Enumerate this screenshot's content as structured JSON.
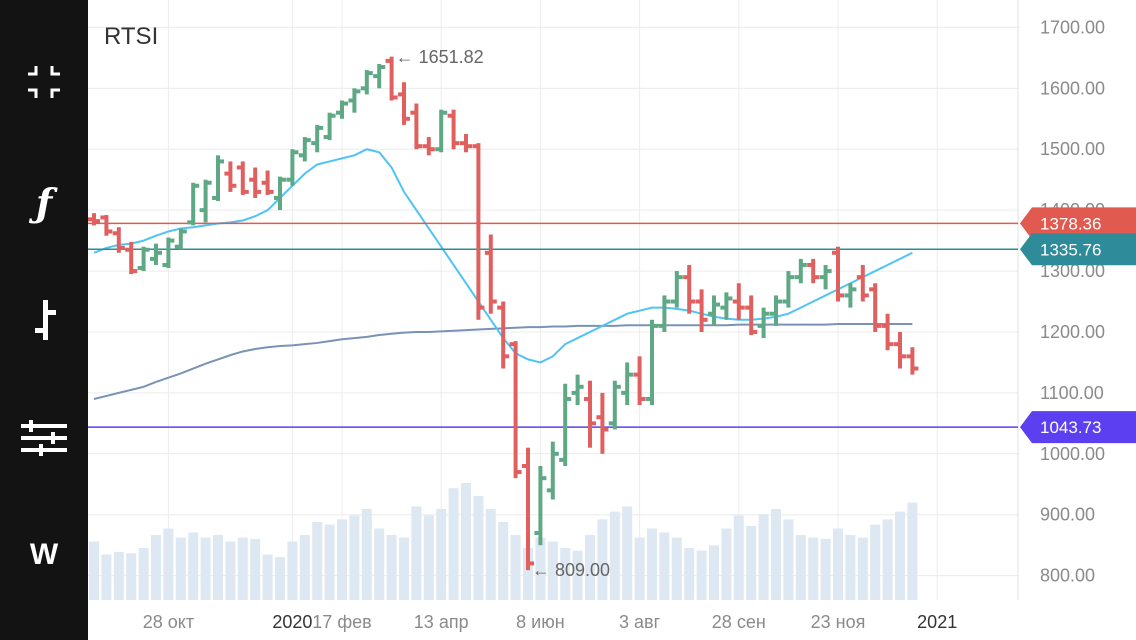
{
  "toolbar": {
    "buttons": [
      {
        "name": "fullscreen-exit-icon",
        "glyph": ""
      },
      {
        "name": "function-icon",
        "glyph": "ƒ"
      },
      {
        "name": "ohlc-bar-icon",
        "glyph": ""
      },
      {
        "name": "settings-sliders-icon",
        "glyph": ""
      },
      {
        "name": "weekly-timeframe-button",
        "glyph": "W"
      }
    ]
  },
  "chart_data": {
    "type": "ohlc",
    "title": "RTSI",
    "colors": {
      "up": "#5fa886",
      "down": "#e06060",
      "volume": "#dde8f2",
      "ma_short": "#4fc3f7",
      "ma_long": "#7a93b5"
    },
    "ylim": [
      760,
      1745
    ],
    "y_ticks": [
      "800.00",
      "900.00",
      "1000.00",
      "1100.00",
      "1200.00",
      "1300.00",
      "1400.00",
      "1500.00",
      "1600.00",
      "1700.00"
    ],
    "x_ticks": [
      {
        "label": "28 окт",
        "bold": false
      },
      {
        "label": "2020",
        "bold": true
      },
      {
        "label": "17 фев",
        "bold": false
      },
      {
        "label": "13 апр",
        "bold": false
      },
      {
        "label": "8 июн",
        "bold": false
      },
      {
        "label": "3 авг",
        "bold": false
      },
      {
        "label": "28 сен",
        "bold": false
      },
      {
        "label": "23 ноя",
        "bold": false
      },
      {
        "label": "2021",
        "bold": true
      }
    ],
    "x_tick_index": [
      6,
      16,
      20,
      28,
      36,
      44,
      52,
      60,
      68
    ],
    "bars_count": 67,
    "ohlc": [
      [
        1385,
        1395,
        1375,
        1382
      ],
      [
        1388,
        1392,
        1358,
        1365
      ],
      [
        1362,
        1372,
        1330,
        1338
      ],
      [
        1335,
        1348,
        1295,
        1300
      ],
      [
        1305,
        1340,
        1300,
        1335
      ],
      [
        1320,
        1345,
        1310,
        1330
      ],
      [
        1310,
        1355,
        1305,
        1350
      ],
      [
        1340,
        1370,
        1335,
        1365
      ],
      [
        1380,
        1445,
        1375,
        1440
      ],
      [
        1400,
        1450,
        1380,
        1445
      ],
      [
        1420,
        1490,
        1415,
        1480
      ],
      [
        1460,
        1480,
        1430,
        1440
      ],
      [
        1470,
        1480,
        1425,
        1430
      ],
      [
        1450,
        1470,
        1420,
        1430
      ],
      [
        1445,
        1465,
        1425,
        1430
      ],
      [
        1420,
        1455,
        1400,
        1450
      ],
      [
        1450,
        1500,
        1440,
        1495
      ],
      [
        1490,
        1520,
        1480,
        1515
      ],
      [
        1510,
        1540,
        1495,
        1535
      ],
      [
        1520,
        1560,
        1515,
        1555
      ],
      [
        1560,
        1580,
        1550,
        1575
      ],
      [
        1580,
        1600,
        1560,
        1595
      ],
      [
        1600,
        1630,
        1590,
        1625
      ],
      [
        1620,
        1640,
        1600,
        1635
      ],
      [
        1645,
        1652,
        1580,
        1585
      ],
      [
        1590,
        1610,
        1540,
        1550
      ],
      [
        1560,
        1575,
        1500,
        1505
      ],
      [
        1505,
        1520,
        1490,
        1500
      ],
      [
        1500,
        1565,
        1495,
        1560
      ],
      [
        1555,
        1565,
        1500,
        1510
      ],
      [
        1510,
        1525,
        1495,
        1505
      ],
      [
        1505,
        1510,
        1220,
        1240
      ],
      [
        1330,
        1360,
        1230,
        1250
      ],
      [
        1240,
        1250,
        1140,
        1160
      ],
      [
        1180,
        1185,
        960,
        970
      ],
      [
        980,
        1010,
        809,
        820
      ],
      [
        870,
        980,
        850,
        960
      ],
      [
        940,
        1020,
        925,
        1000
      ],
      [
        990,
        1115,
        980,
        1090
      ],
      [
        1100,
        1130,
        1080,
        1110
      ],
      [
        1090,
        1120,
        1010,
        1050
      ],
      [
        1060,
        1100,
        1000,
        1040
      ],
      [
        1050,
        1120,
        1040,
        1110
      ],
      [
        1100,
        1150,
        1080,
        1130
      ],
      [
        1130,
        1160,
        1080,
        1090
      ],
      [
        1090,
        1220,
        1080,
        1210
      ],
      [
        1210,
        1260,
        1200,
        1250
      ],
      [
        1250,
        1300,
        1240,
        1290
      ],
      [
        1290,
        1310,
        1230,
        1250
      ],
      [
        1250,
        1270,
        1200,
        1220
      ],
      [
        1230,
        1260,
        1210,
        1245
      ],
      [
        1240,
        1265,
        1220,
        1255
      ],
      [
        1250,
        1280,
        1220,
        1240
      ],
      [
        1240,
        1260,
        1195,
        1200
      ],
      [
        1210,
        1240,
        1190,
        1230
      ],
      [
        1230,
        1260,
        1210,
        1250
      ],
      [
        1250,
        1300,
        1240,
        1290
      ],
      [
        1290,
        1320,
        1280,
        1310
      ],
      [
        1310,
        1320,
        1280,
        1290
      ],
      [
        1290,
        1310,
        1270,
        1300
      ],
      [
        1330,
        1340,
        1250,
        1260
      ],
      [
        1260,
        1280,
        1240,
        1270
      ],
      [
        1290,
        1310,
        1250,
        1260
      ],
      [
        1270,
        1280,
        1200,
        1210
      ],
      [
        1210,
        1230,
        1170,
        1180
      ],
      [
        1180,
        1200,
        1140,
        1160
      ],
      [
        1160,
        1175,
        1130,
        1140
      ]
    ],
    "ma_short": [
      1330,
      1338,
      1343,
      1345,
      1350,
      1358,
      1365,
      1370,
      1372,
      1375,
      1378,
      1380,
      1383,
      1390,
      1400,
      1420,
      1440,
      1460,
      1475,
      1480,
      1485,
      1490,
      1500,
      1495,
      1470,
      1430,
      1400,
      1370,
      1340,
      1310,
      1280,
      1250,
      1220,
      1190,
      1165,
      1155,
      1150,
      1160,
      1180,
      1190,
      1200,
      1210,
      1220,
      1230,
      1235,
      1240,
      1240,
      1238,
      1235,
      1230,
      1225,
      1222,
      1220,
      1220,
      1222,
      1225,
      1230,
      1240,
      1250,
      1260,
      1270,
      1280,
      1290,
      1300,
      1310,
      1320,
      1330
    ],
    "ma_long": [
      1090,
      1095,
      1100,
      1105,
      1110,
      1118,
      1125,
      1132,
      1140,
      1148,
      1155,
      1162,
      1168,
      1172,
      1175,
      1177,
      1178,
      1180,
      1182,
      1185,
      1188,
      1190,
      1192,
      1195,
      1197,
      1199,
      1200,
      1200,
      1201,
      1202,
      1203,
      1204,
      1205,
      1206,
      1207,
      1208,
      1208,
      1209,
      1209,
      1210,
      1210,
      1210,
      1210,
      1211,
      1211,
      1211,
      1211,
      1211,
      1211,
      1211,
      1211,
      1211,
      1212,
      1212,
      1212,
      1212,
      1212,
      1212,
      1212,
      1212,
      1213,
      1213,
      1213,
      1213,
      1213,
      1213,
      1213
    ],
    "volume": [
      0.45,
      0.35,
      0.37,
      0.36,
      0.4,
      0.5,
      0.55,
      0.48,
      0.52,
      0.48,
      0.5,
      0.45,
      0.48,
      0.47,
      0.35,
      0.33,
      0.45,
      0.5,
      0.6,
      0.58,
      0.62,
      0.65,
      0.7,
      0.55,
      0.5,
      0.48,
      0.72,
      0.65,
      0.7,
      0.86,
      0.9,
      0.8,
      0.7,
      0.6,
      0.5,
      0.4,
      0.48,
      0.45,
      0.4,
      0.38,
      0.5,
      0.62,
      0.68,
      0.72,
      0.48,
      0.55,
      0.52,
      0.48,
      0.4,
      0.38,
      0.42,
      0.55,
      0.65,
      0.57,
      0.66,
      0.7,
      0.62,
      0.5,
      0.48,
      0.47,
      0.55,
      0.5,
      0.48,
      0.58,
      0.62,
      0.68,
      0.75
    ],
    "price_lines": [
      {
        "value": 1378.36,
        "label": "1378.36",
        "color": "#e05a4f"
      },
      {
        "value": 1335.76,
        "label": "1335.76",
        "color": "#2e8b9a"
      },
      {
        "value": 1043.73,
        "label": "1043.73",
        "color": "#5b3ff0"
      }
    ],
    "annotations": [
      {
        "label": "← 1651.82",
        "bar_index": 24,
        "value": 1651.82
      },
      {
        "label": "← 809.00",
        "bar_index": 35,
        "value": 809.0
      }
    ]
  }
}
